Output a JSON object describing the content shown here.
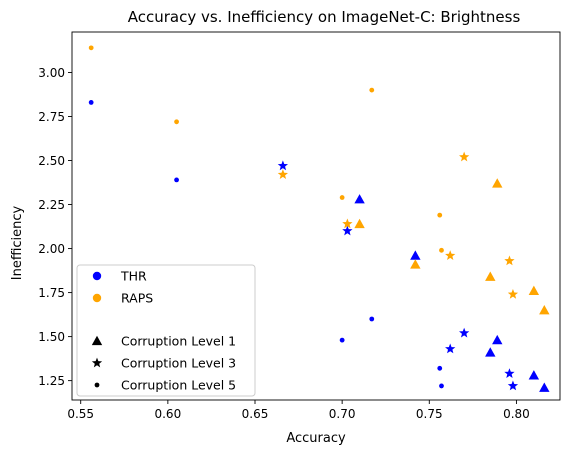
{
  "chart_data": {
    "type": "scatter",
    "title": "Accuracy vs. Inefficiency on ImageNet-C: Brightness",
    "xlabel": "Accuracy",
    "ylabel": "Inefficiency",
    "xlim": [
      0.545,
      0.825
    ],
    "ylim": [
      1.14,
      3.23
    ],
    "xticks": [
      0.55,
      0.6,
      0.65,
      0.7,
      0.75,
      0.8
    ],
    "xtick_labels": [
      "0.55",
      "0.60",
      "0.65",
      "0.70",
      "0.75",
      "0.80"
    ],
    "yticks": [
      1.25,
      1.5,
      1.75,
      2.0,
      2.25,
      2.5,
      2.75,
      3.0
    ],
    "ytick_labels": [
      "1.25",
      "1.50",
      "1.75",
      "2.00",
      "2.25",
      "2.50",
      "2.75",
      "3.00"
    ],
    "grid": false,
    "legend_position": "lower-left",
    "methods": [
      {
        "name": "THR",
        "color": "#0000ff"
      },
      {
        "name": "RAPS",
        "color": "#ffa500"
      }
    ],
    "levels": [
      {
        "name": "Corruption Level 1",
        "marker": "triangle"
      },
      {
        "name": "Corruption Level 3",
        "marker": "star"
      },
      {
        "name": "Corruption Level 5",
        "marker": "dot"
      }
    ],
    "series": [
      {
        "method": "THR",
        "level": "Corruption Level 1",
        "points": [
          {
            "x": 0.71,
            "y": 2.28
          },
          {
            "x": 0.742,
            "y": 1.96
          },
          {
            "x": 0.785,
            "y": 1.41
          },
          {
            "x": 0.789,
            "y": 1.48
          },
          {
            "x": 0.81,
            "y": 1.28
          },
          {
            "x": 0.816,
            "y": 1.21
          }
        ]
      },
      {
        "method": "THR",
        "level": "Corruption Level 3",
        "points": [
          {
            "x": 0.666,
            "y": 2.47
          },
          {
            "x": 0.703,
            "y": 2.1
          },
          {
            "x": 0.762,
            "y": 1.43
          },
          {
            "x": 0.77,
            "y": 1.52
          },
          {
            "x": 0.796,
            "y": 1.29
          },
          {
            "x": 0.798,
            "y": 1.22
          }
        ]
      },
      {
        "method": "THR",
        "level": "Corruption Level 5",
        "points": [
          {
            "x": 0.556,
            "y": 2.83
          },
          {
            "x": 0.605,
            "y": 2.39
          },
          {
            "x": 0.7,
            "y": 1.48
          },
          {
            "x": 0.717,
            "y": 1.6
          },
          {
            "x": 0.756,
            "y": 1.32
          },
          {
            "x": 0.757,
            "y": 1.22
          }
        ]
      },
      {
        "method": "RAPS",
        "level": "Corruption Level 1",
        "points": [
          {
            "x": 0.71,
            "y": 2.14
          },
          {
            "x": 0.742,
            "y": 1.91
          },
          {
            "x": 0.785,
            "y": 1.84
          },
          {
            "x": 0.789,
            "y": 2.37
          },
          {
            "x": 0.81,
            "y": 1.76
          },
          {
            "x": 0.816,
            "y": 1.65
          }
        ]
      },
      {
        "method": "RAPS",
        "level": "Corruption Level 3",
        "points": [
          {
            "x": 0.666,
            "y": 2.42
          },
          {
            "x": 0.703,
            "y": 2.14
          },
          {
            "x": 0.762,
            "y": 1.96
          },
          {
            "x": 0.77,
            "y": 2.52
          },
          {
            "x": 0.796,
            "y": 1.93
          },
          {
            "x": 0.798,
            "y": 1.74
          }
        ]
      },
      {
        "method": "RAPS",
        "level": "Corruption Level 5",
        "points": [
          {
            "x": 0.556,
            "y": 3.14
          },
          {
            "x": 0.605,
            "y": 2.72
          },
          {
            "x": 0.7,
            "y": 2.29
          },
          {
            "x": 0.717,
            "y": 2.9
          },
          {
            "x": 0.756,
            "y": 2.19
          },
          {
            "x": 0.757,
            "y": 1.99
          }
        ]
      }
    ]
  }
}
